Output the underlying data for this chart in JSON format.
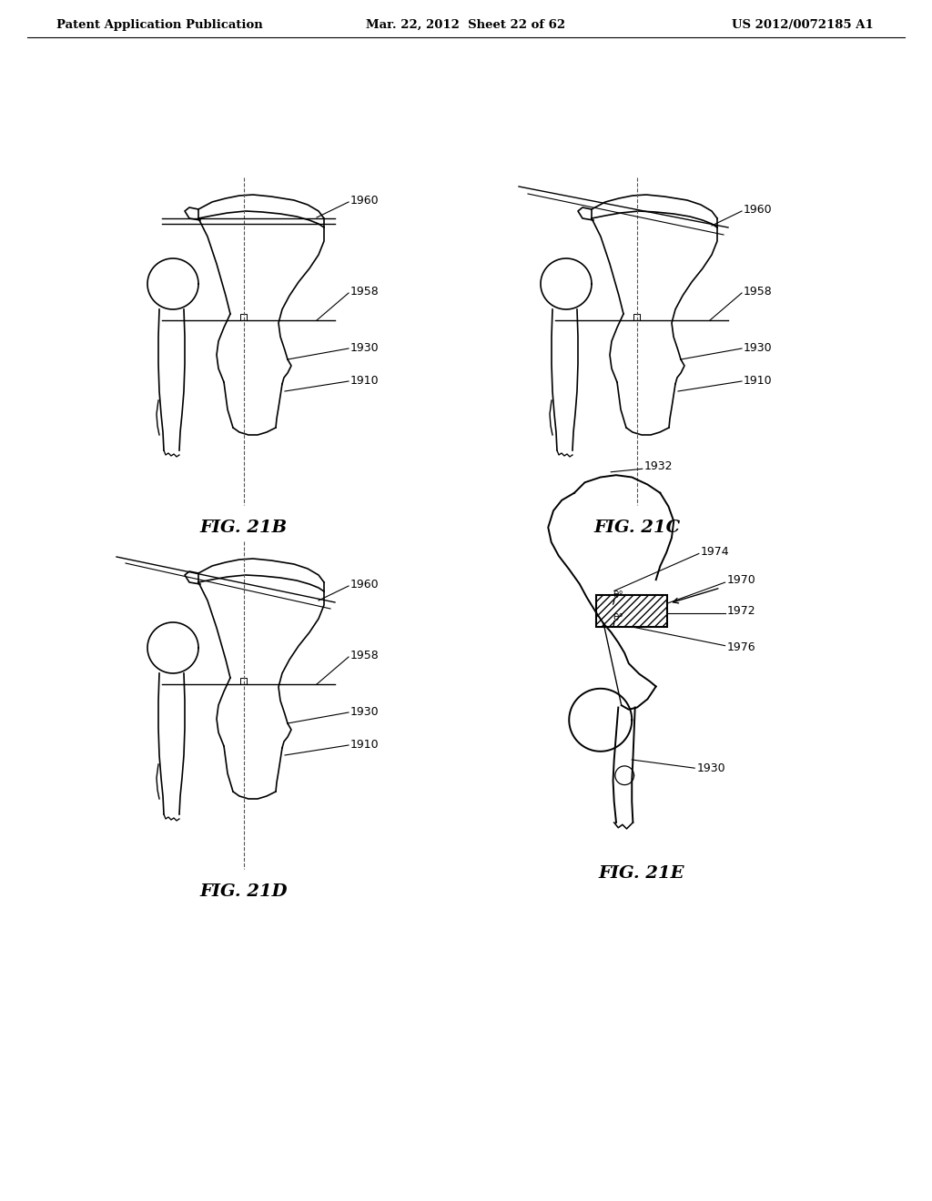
{
  "bg_color": "#ffffff",
  "header_left": "Patent Application Publication",
  "header_mid": "Mar. 22, 2012  Sheet 22 of 62",
  "header_right": "US 2012/0072185 A1",
  "fig_labels": [
    "FIG. 21B",
    "FIG. 21C",
    "FIG. 21D",
    "FIG. 21E"
  ],
  "text_color": "#000000",
  "line_color": "#000000"
}
